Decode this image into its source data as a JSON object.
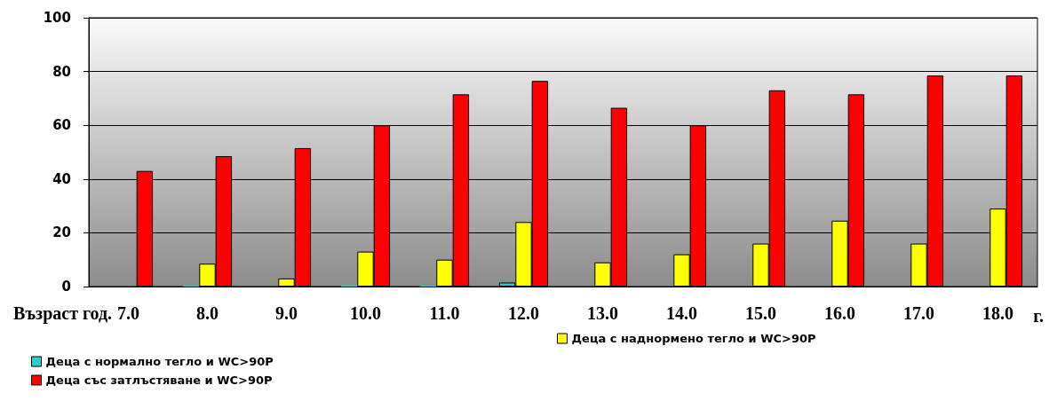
{
  "chart_data": {
    "type": "bar",
    "xlabel": "Възраст год.",
    "annotations": [
      "г."
    ],
    "categories": [
      "7.0",
      "8.0",
      "9.0",
      "10.0",
      "11.0",
      "12.0",
      "13.0",
      "14.0",
      "15.0",
      "16.0",
      "17.0",
      "18.0"
    ],
    "series": [
      {
        "name": "Деца с нормално тегло и WC>90P",
        "color": "#33cccc",
        "values": [
          null,
          0.3,
          null,
          0.5,
          0.3,
          1.5,
          null,
          null,
          null,
          null,
          null,
          null
        ]
      },
      {
        "name": "Деца с наднормено тегло и WC>90P",
        "color": "#ffff00",
        "values": [
          null,
          8.5,
          3,
          13,
          10,
          24,
          9,
          12,
          16,
          24.5,
          16,
          29
        ]
      },
      {
        "name": "Деца със затлъстяване и WC>90P",
        "color": "#ff0000",
        "values": [
          43,
          48.5,
          51.5,
          60,
          71.5,
          76.5,
          66.5,
          60,
          73,
          71.5,
          78.5,
          78.5
        ]
      }
    ],
    "ylim": [
      0,
      100
    ],
    "yticks": [
      0,
      20,
      40,
      60,
      80,
      100
    ],
    "grid": "y",
    "legend": "bottom left"
  }
}
